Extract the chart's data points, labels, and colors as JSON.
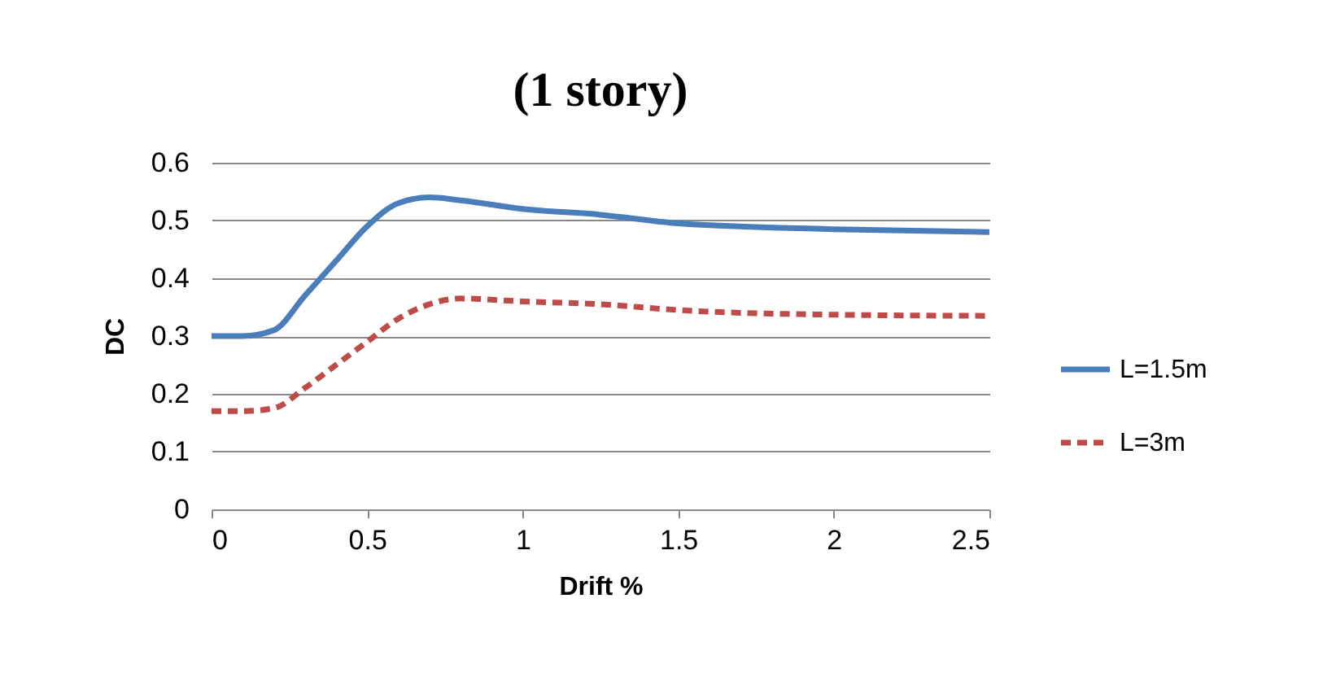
{
  "chart_data": {
    "type": "line",
    "title": "(1 story)",
    "xlabel": "Drift %",
    "ylabel": "DC",
    "x": [
      0,
      0.1,
      0.2,
      0.3,
      0.4,
      0.5,
      0.6,
      0.7,
      0.8,
      1.0,
      1.25,
      1.5,
      2,
      2.5
    ],
    "series": [
      {
        "name": "L=1.5m",
        "color": "#4a7ebb",
        "line_style": "solid",
        "values": [
          0.3,
          0.3,
          0.31,
          0.37,
          0.43,
          0.49,
          0.53,
          0.54,
          0.535,
          0.52,
          0.51,
          0.495,
          0.485,
          0.48
        ]
      },
      {
        "name": "L=3m",
        "color": "#be4b48",
        "line_style": "dashed",
        "values": [
          0.17,
          0.17,
          0.175,
          0.21,
          0.25,
          0.29,
          0.33,
          0.355,
          0.365,
          0.36,
          0.355,
          0.345,
          0.337,
          0.335
        ]
      }
    ],
    "xlim": [
      0,
      2.5
    ],
    "xticks": [
      0,
      0.5,
      1,
      1.5,
      2,
      2.5
    ],
    "ylim": [
      0,
      0.6
    ],
    "yticks": [
      0,
      0.1,
      0.2,
      0.3,
      0.4,
      0.5,
      0.6
    ],
    "grid": "y",
    "legend": "right",
    "marker": "none"
  }
}
